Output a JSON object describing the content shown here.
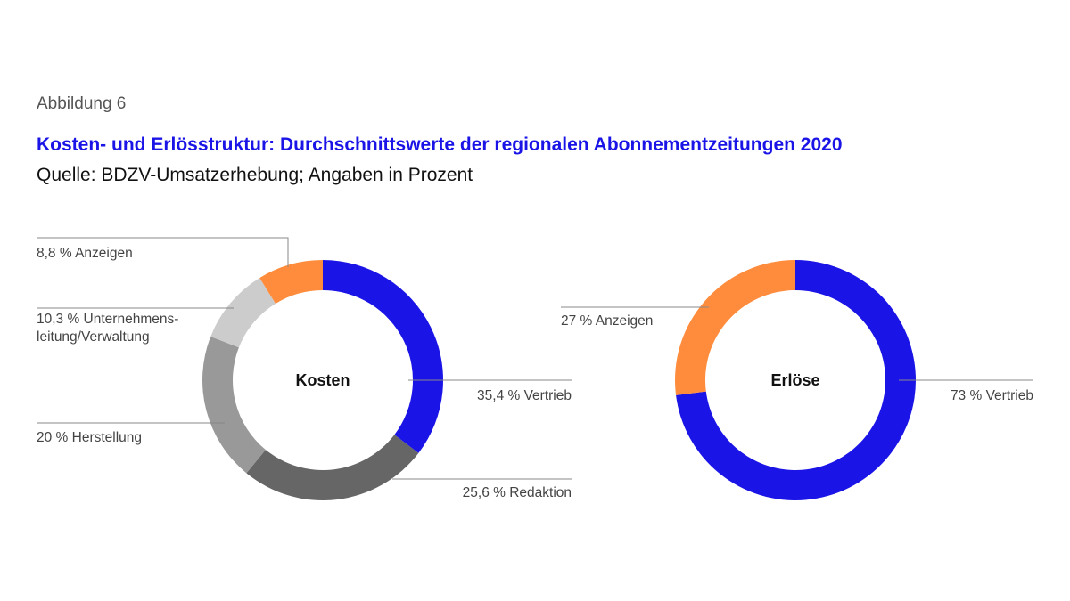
{
  "header": {
    "figure_number": "Abbildung 6",
    "title": "Kosten- und Erlösstruktur: Durchschnittswerte der regionalen Abonnementzeitungen 2020",
    "source": "Quelle: BDZV-Umsatzerhebung; Angaben in Prozent"
  },
  "chart_data": [
    {
      "type": "pie",
      "donut": true,
      "center_label": "Kosten",
      "slices": [
        {
          "label_lines": [
            "35,4 % Vertrieb"
          ],
          "value": 35.4,
          "color": "#1a14e6"
        },
        {
          "label_lines": [
            "25,6 % Redaktion"
          ],
          "value": 25.6,
          "color": "#666666"
        },
        {
          "label_lines": [
            "20 % Herstellung"
          ],
          "value": 20.0,
          "color": "#999999"
        },
        {
          "label_lines": [
            "10,3 % Unternehmens-",
            "leitung/Verwaltung"
          ],
          "value": 10.3,
          "color": "#cccccc"
        },
        {
          "label_lines": [
            "8,8 % Anzeigen"
          ],
          "value": 8.8,
          "color": "#ff8c3c"
        }
      ]
    },
    {
      "type": "pie",
      "donut": true,
      "center_label": "Erlöse",
      "slices": [
        {
          "label_lines": [
            "73 % Vertrieb"
          ],
          "value": 73,
          "color": "#1a14e6"
        },
        {
          "label_lines": [
            "27 % Anzeigen"
          ],
          "value": 27,
          "color": "#ff8c3c"
        }
      ]
    }
  ]
}
